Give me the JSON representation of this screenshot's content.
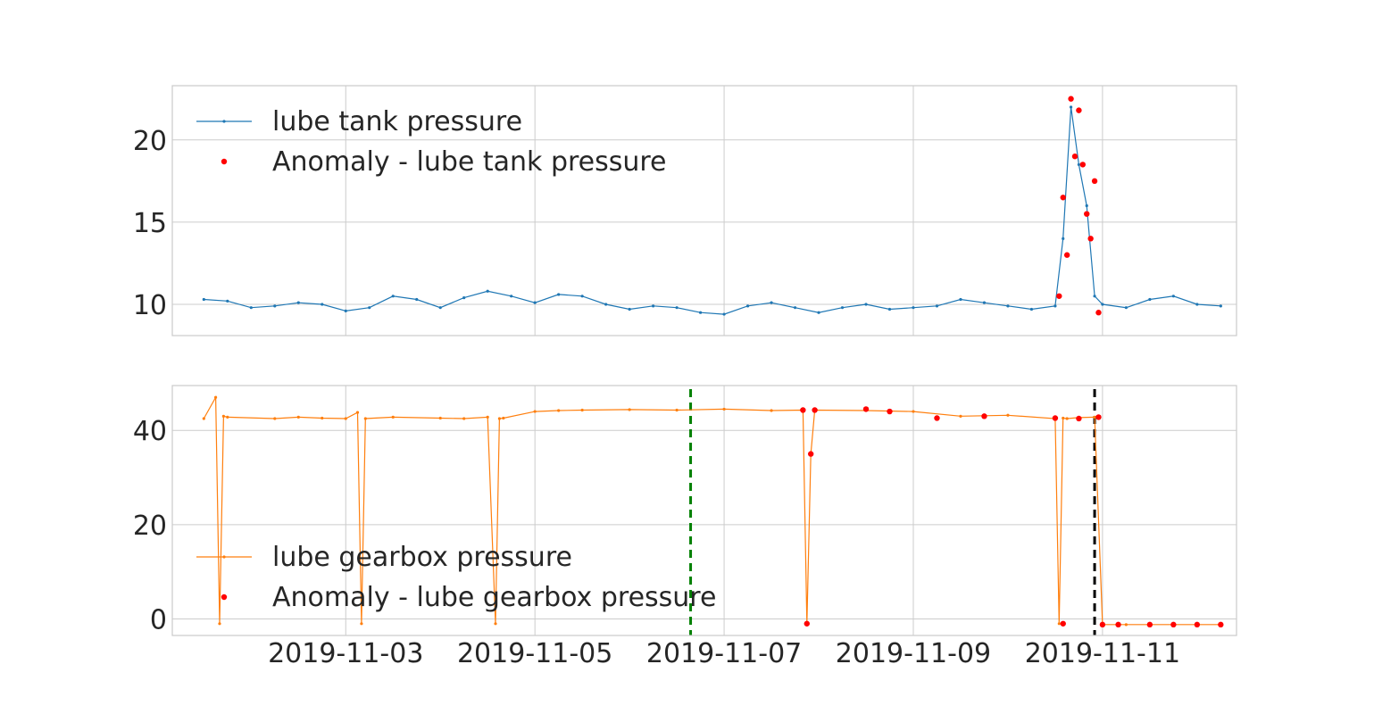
{
  "chart_data": [
    {
      "type": "line",
      "title": "",
      "xlabel": "",
      "ylabel": "",
      "xlim": [
        "2019-11-01T04:00",
        "2019-11-12T10:00"
      ],
      "ylim": [
        8.1,
        23.3
      ],
      "yticks": [
        "10",
        "15",
        "20"
      ],
      "xticks": [],
      "grid": true,
      "legend": "upper left",
      "series": [
        {
          "name": "lube tank pressure",
          "color": "#1f77b4",
          "style": "line with small markers",
          "x": [
            "2019-11-01T12:00",
            "2019-11-01T18:00",
            "2019-11-02T00:00",
            "2019-11-02T06:00",
            "2019-11-02T12:00",
            "2019-11-02T18:00",
            "2019-11-03T00:00",
            "2019-11-03T06:00",
            "2019-11-03T12:00",
            "2019-11-03T18:00",
            "2019-11-04T00:00",
            "2019-11-04T06:00",
            "2019-11-04T12:00",
            "2019-11-04T18:00",
            "2019-11-05T00:00",
            "2019-11-05T06:00",
            "2019-11-05T12:00",
            "2019-11-05T18:00",
            "2019-11-06T00:00",
            "2019-11-06T06:00",
            "2019-11-06T12:00",
            "2019-11-06T18:00",
            "2019-11-07T00:00",
            "2019-11-07T06:00",
            "2019-11-07T12:00",
            "2019-11-07T18:00",
            "2019-11-08T00:00",
            "2019-11-08T06:00",
            "2019-11-08T12:00",
            "2019-11-08T18:00",
            "2019-11-09T00:00",
            "2019-11-09T06:00",
            "2019-11-09T12:00",
            "2019-11-09T18:00",
            "2019-11-10T00:00",
            "2019-11-10T06:00",
            "2019-11-10T12:00",
            "2019-11-10T14:00",
            "2019-11-10T16:00",
            "2019-11-10T18:00",
            "2019-11-10T20:00",
            "2019-11-10T22:00",
            "2019-11-11T00:00",
            "2019-11-11T06:00",
            "2019-11-11T12:00",
            "2019-11-11T18:00",
            "2019-11-12T00:00",
            "2019-11-12T06:00"
          ],
          "y": [
            10.3,
            10.2,
            9.8,
            9.9,
            10.1,
            10.0,
            9.6,
            9.8,
            10.5,
            10.3,
            9.8,
            10.4,
            10.8,
            10.5,
            10.1,
            10.6,
            10.5,
            10.0,
            9.7,
            9.9,
            9.8,
            9.5,
            9.4,
            9.9,
            10.1,
            9.8,
            9.5,
            9.8,
            10.0,
            9.7,
            9.8,
            9.9,
            10.3,
            10.1,
            9.9,
            9.7,
            9.9,
            14.0,
            22.0,
            18.5,
            16.0,
            10.5,
            10.0,
            9.8,
            10.3,
            10.5,
            10.0,
            9.9
          ]
        },
        {
          "name": "Anomaly - lube tank pressure",
          "color": "#ff0000",
          "style": "red dots",
          "x": [
            "2019-11-10T13:00",
            "2019-11-10T14:00",
            "2019-11-10T15:00",
            "2019-11-10T16:00",
            "2019-11-10T17:00",
            "2019-11-10T18:00",
            "2019-11-10T19:00",
            "2019-11-10T20:00",
            "2019-11-10T21:00",
            "2019-11-10T22:00",
            "2019-11-10T23:00"
          ],
          "y": [
            10.5,
            16.5,
            13.0,
            22.5,
            19.0,
            21.8,
            18.5,
            15.5,
            14.0,
            17.5,
            9.5
          ]
        }
      ]
    },
    {
      "type": "line",
      "title": "",
      "xlabel": "",
      "ylabel": "",
      "xlim": [
        "2019-11-01T04:00",
        "2019-11-12T10:00"
      ],
      "ylim": [
        -3.5,
        49.5
      ],
      "yticks": [
        "0",
        "20",
        "40"
      ],
      "xticks": [
        "2019-11-03",
        "2019-11-05",
        "2019-11-07",
        "2019-11-09",
        "2019-11-11"
      ],
      "grid": true,
      "legend": "lower left",
      "vlines": [
        {
          "x": "2019-11-06T15:30",
          "color": "#008000",
          "style": "dashed"
        },
        {
          "x": "2019-11-10T22:00",
          "color": "#000000",
          "style": "dashed"
        }
      ],
      "series": [
        {
          "name": "lube gearbox pressure",
          "color": "#ff7f0e",
          "style": "line with small markers",
          "x": [
            "2019-11-01T12:00",
            "2019-11-01T15:00",
            "2019-11-01T16:00",
            "2019-11-01T17:00",
            "2019-11-01T18:00",
            "2019-11-02T06:00",
            "2019-11-02T12:00",
            "2019-11-02T18:00",
            "2019-11-03T00:00",
            "2019-11-03T03:00",
            "2019-11-03T04:00",
            "2019-11-03T05:00",
            "2019-11-03T12:00",
            "2019-11-04T00:00",
            "2019-11-04T06:00",
            "2019-11-04T12:00",
            "2019-11-04T14:00",
            "2019-11-04T15:00",
            "2019-11-04T16:00",
            "2019-11-05T00:00",
            "2019-11-05T06:00",
            "2019-11-05T12:00",
            "2019-11-06T00:00",
            "2019-11-06T12:00",
            "2019-11-07T00:00",
            "2019-11-07T12:00",
            "2019-11-07T20:00",
            "2019-11-07T21:00",
            "2019-11-07T22:00",
            "2019-11-07T23:00",
            "2019-11-08T12:00",
            "2019-11-09T00:00",
            "2019-11-09T12:00",
            "2019-11-10T00:00",
            "2019-11-10T12:00",
            "2019-11-10T13:00",
            "2019-11-10T14:00",
            "2019-11-10T15:00",
            "2019-11-10T18:00",
            "2019-11-10T22:00",
            "2019-11-11T00:00",
            "2019-11-11T06:00",
            "2019-11-11T12:00",
            "2019-11-11T18:00",
            "2019-11-12T00:00",
            "2019-11-12T06:00"
          ],
          "y": [
            42.5,
            47.0,
            -1.0,
            43.0,
            42.8,
            42.5,
            42.8,
            42.6,
            42.5,
            43.8,
            -1.0,
            42.5,
            42.8,
            42.6,
            42.5,
            42.8,
            -1.0,
            42.5,
            42.6,
            44.0,
            44.2,
            44.3,
            44.4,
            44.3,
            44.5,
            44.2,
            44.3,
            -1.0,
            35.0,
            44.3,
            44.2,
            44.0,
            43.0,
            43.2,
            42.5,
            -1.0,
            42.6,
            42.5,
            42.7,
            42.8,
            -1.2,
            -1.2,
            -1.2,
            -1.2,
            -1.2,
            -1.2
          ]
        },
        {
          "name": "Anomaly - lube gearbox pressure",
          "color": "#ff0000",
          "style": "red dots",
          "x": [
            "2019-11-07T20:00",
            "2019-11-07T21:00",
            "2019-11-07T22:00",
            "2019-11-07T23:00",
            "2019-11-08T12:00",
            "2019-11-08T18:00",
            "2019-11-09T06:00",
            "2019-11-09T18:00",
            "2019-11-10T12:00",
            "2019-11-10T14:00",
            "2019-11-10T18:00",
            "2019-11-10T23:00",
            "2019-11-11T00:00",
            "2019-11-11T04:00",
            "2019-11-11T12:00",
            "2019-11-11T18:00",
            "2019-11-12T00:00",
            "2019-11-12T06:00"
          ],
          "y": [
            44.3,
            -1.0,
            35.0,
            44.3,
            44.5,
            44.0,
            42.6,
            43.0,
            42.6,
            -1.0,
            42.5,
            42.8,
            -1.2,
            -1.2,
            -1.2,
            -1.2,
            -1.2,
            -1.2
          ]
        }
      ]
    }
  ]
}
